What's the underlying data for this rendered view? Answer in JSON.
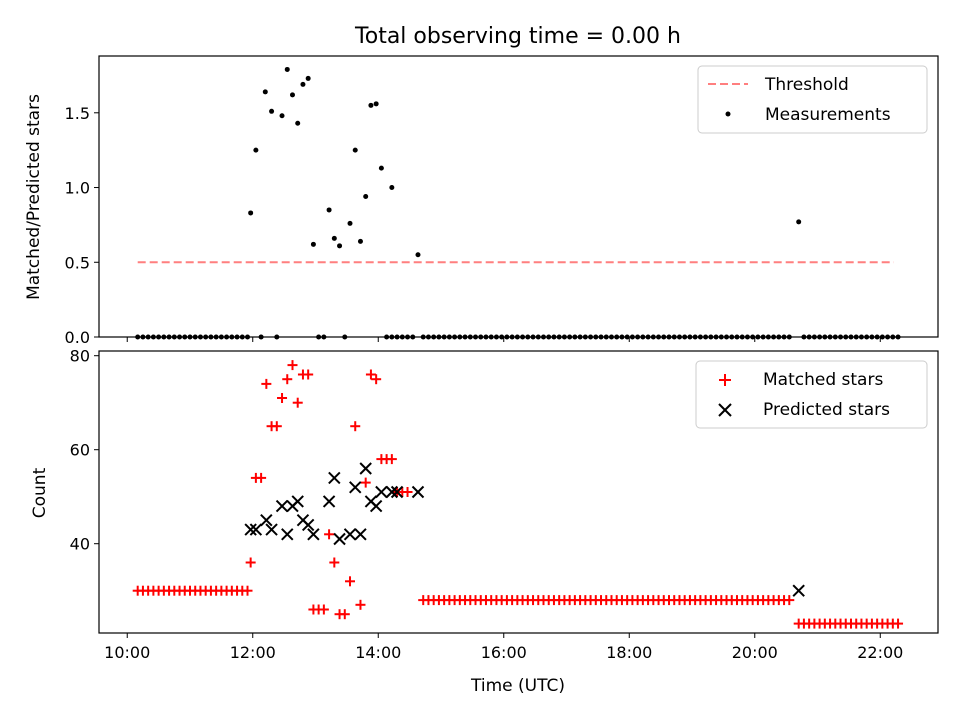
{
  "chart_data": [
    {
      "type": "scatter",
      "title": "Total observing time = 0.00 h",
      "xlabel": "",
      "ylabel": "Matched/Predicted stars",
      "xlim_hours": [
        9.55,
        22.92
      ],
      "ylim": [
        0,
        1.88
      ],
      "yticks": [
        0.0,
        0.5,
        1.0,
        1.5
      ],
      "ytick_labels": [
        "0.0",
        "0.5",
        "1.0",
        "1.5"
      ],
      "legend_position": "upper right",
      "threshold": {
        "name": "Threshold",
        "value": 0.5,
        "x_range": [
          "10:10",
          "22:13"
        ],
        "color": "#ff7f7f",
        "style": "dashed"
      },
      "series": [
        {
          "name": "Measurements",
          "color": "#000000",
          "marker": "dot",
          "points": [
            [
              "11:58",
              0.83
            ],
            [
              "12:03",
              1.25
            ],
            [
              "12:12",
              1.64
            ],
            [
              "12:18",
              1.51
            ],
            [
              "12:28",
              1.48
            ],
            [
              "12:33",
              1.79
            ],
            [
              "12:38",
              1.62
            ],
            [
              "12:43",
              1.43
            ],
            [
              "12:48",
              1.69
            ],
            [
              "12:53",
              1.73
            ],
            [
              "12:58",
              0.62
            ],
            [
              "13:13",
              0.85
            ],
            [
              "13:18",
              0.66
            ],
            [
              "13:23",
              0.61
            ],
            [
              "13:33",
              0.76
            ],
            [
              "13:38",
              1.25
            ],
            [
              "13:43",
              0.64
            ],
            [
              "13:48",
              0.94
            ],
            [
              "13:53",
              1.55
            ],
            [
              "13:58",
              1.56
            ],
            [
              "14:03",
              1.13
            ],
            [
              "14:13",
              1.0
            ],
            [
              "14:38",
              0.55
            ],
            [
              "20:42",
              0.77
            ]
          ],
          "zero_points_note": "Measurements equal to 0 at every other observation time",
          "zero_runs": [
            [
              "10:10",
              "11:55",
              5
            ],
            [
              "12:08",
              "12:08",
              5
            ],
            [
              "12:23",
              "12:23",
              5
            ],
            [
              "13:03",
              "13:08",
              5
            ],
            [
              "13:28",
              "13:28",
              5
            ],
            [
              "14:08",
              "14:33",
              5
            ],
            [
              "14:43",
              "20:37",
              5
            ],
            [
              "20:47",
              "22:18",
              5
            ]
          ]
        }
      ]
    },
    {
      "type": "scatter",
      "title": "",
      "xlabel": "Time (UTC)",
      "ylabel": "Count",
      "xlim_hours": [
        9.55,
        22.92
      ],
      "ylim": [
        21,
        81
      ],
      "yticks": [
        40,
        60,
        80
      ],
      "ytick_labels": [
        "40",
        "60",
        "80"
      ],
      "xticks": [
        "10:00",
        "12:00",
        "14:00",
        "16:00",
        "18:00",
        "20:00",
        "22:00"
      ],
      "legend_position": "upper right",
      "series": [
        {
          "name": "Matched stars",
          "color": "#ff0000",
          "marker": "plus",
          "runs": [
            [
              "10:10",
              "11:55",
              5,
              30
            ],
            [
              "14:43",
              "20:37",
              5,
              28
            ],
            [
              "20:47",
              "22:18",
              5,
              23
            ]
          ],
          "points": [
            [
              "11:58",
              36
            ],
            [
              "12:03",
              54
            ],
            [
              "12:08",
              54
            ],
            [
              "12:13",
              74
            ],
            [
              "12:18",
              65
            ],
            [
              "12:23",
              65
            ],
            [
              "12:28",
              71
            ],
            [
              "12:33",
              75
            ],
            [
              "12:38",
              78
            ],
            [
              "12:43",
              70
            ],
            [
              "12:48",
              76
            ],
            [
              "12:53",
              76
            ],
            [
              "12:58",
              26
            ],
            [
              "13:03",
              26
            ],
            [
              "13:08",
              26
            ],
            [
              "13:13",
              42
            ],
            [
              "13:18",
              36
            ],
            [
              "13:23",
              25
            ],
            [
              "13:28",
              25
            ],
            [
              "13:33",
              32
            ],
            [
              "13:38",
              65
            ],
            [
              "13:43",
              27
            ],
            [
              "13:48",
              53
            ],
            [
              "13:53",
              76
            ],
            [
              "13:58",
              75
            ],
            [
              "14:03",
              58
            ],
            [
              "14:08",
              58
            ],
            [
              "14:13",
              58
            ],
            [
              "14:18",
              51
            ],
            [
              "14:23",
              51
            ],
            [
              "14:28",
              51
            ],
            [
              "20:42",
              23
            ]
          ]
        },
        {
          "name": "Predicted stars",
          "color": "#000000",
          "marker": "x",
          "points": [
            [
              "11:58",
              43
            ],
            [
              "12:03",
              43
            ],
            [
              "12:13",
              45
            ],
            [
              "12:18",
              43
            ],
            [
              "12:28",
              48
            ],
            [
              "12:33",
              42
            ],
            [
              "12:38",
              48
            ],
            [
              "12:43",
              49
            ],
            [
              "12:48",
              45
            ],
            [
              "12:53",
              44
            ],
            [
              "12:58",
              42
            ],
            [
              "13:13",
              49
            ],
            [
              "13:18",
              54
            ],
            [
              "13:23",
              41
            ],
            [
              "13:33",
              42
            ],
            [
              "13:38",
              52
            ],
            [
              "13:43",
              42
            ],
            [
              "13:48",
              56
            ],
            [
              "13:53",
              49
            ],
            [
              "13:58",
              48
            ],
            [
              "14:03",
              51
            ],
            [
              "14:13",
              51
            ],
            [
              "14:18",
              51
            ],
            [
              "14:38",
              51
            ],
            [
              "20:42",
              30
            ]
          ]
        }
      ]
    }
  ]
}
